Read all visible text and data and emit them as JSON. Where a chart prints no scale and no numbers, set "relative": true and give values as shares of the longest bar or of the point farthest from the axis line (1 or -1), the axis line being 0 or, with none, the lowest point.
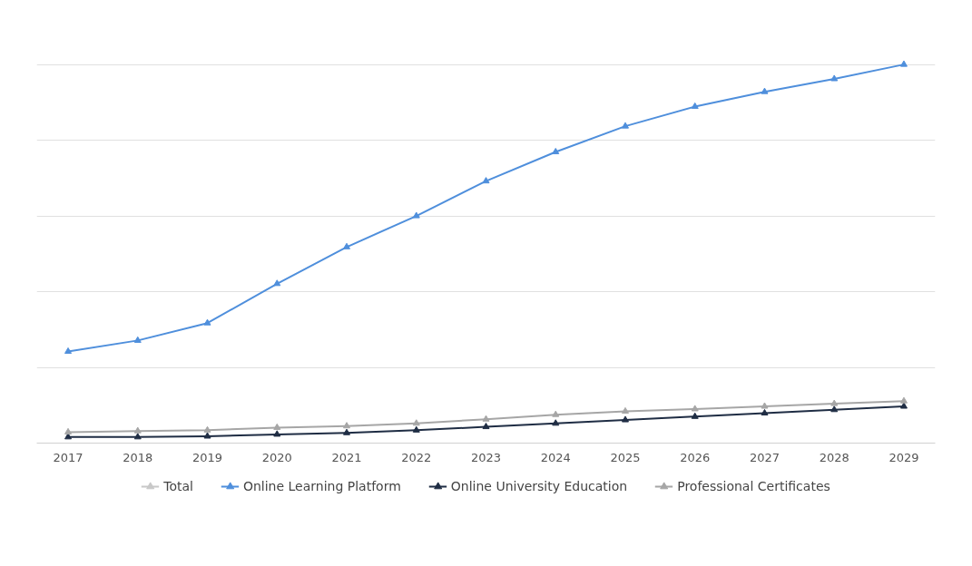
{
  "chart_data": {
    "type": "line",
    "relative": true,
    "categories": [
      "2017",
      "2018",
      "2019",
      "2020",
      "2021",
      "2022",
      "2023",
      "2024",
      "2025",
      "2026",
      "2027",
      "2028",
      "2029"
    ],
    "series": [
      {
        "name": "Total",
        "color": "#c8c8c8",
        "values": [
          null,
          null,
          null,
          null,
          null,
          null,
          null,
          null,
          null,
          null,
          null,
          null,
          null
        ]
      },
      {
        "name": "Online Learning Platform",
        "color": "#4f8fdc",
        "values": [
          0.242,
          0.271,
          0.317,
          0.421,
          0.518,
          0.6,
          0.692,
          0.769,
          0.837,
          0.889,
          0.928,
          0.962,
          1
        ]
      },
      {
        "name": "Online University Education",
        "color": "#1f2d44",
        "values": [
          0.016,
          0.016,
          0.018,
          0.023,
          0.027,
          0.034,
          0.043,
          0.052,
          0.061,
          0.07,
          0.079,
          0.088,
          0.097
        ]
      },
      {
        "name": "Professional Certificates",
        "color": "#a6a6a6",
        "values": [
          0.029,
          0.032,
          0.034,
          0.041,
          0.045,
          0.052,
          0.063,
          0.075,
          0.084,
          0.09,
          0.097,
          0.104,
          0.111
        ]
      }
    ],
    "marker": "triangle",
    "line_style": "solid",
    "grid": "y",
    "legend": "bottom"
  }
}
